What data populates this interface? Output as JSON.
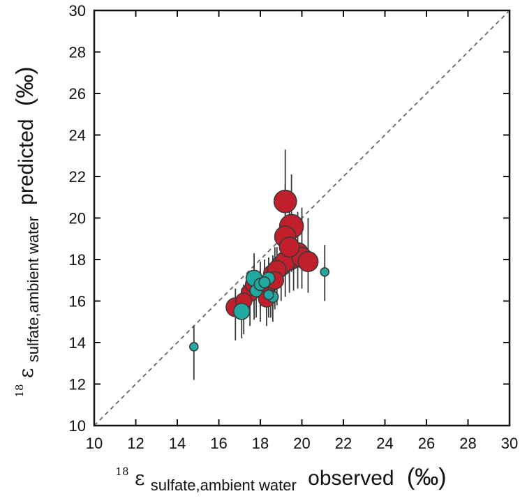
{
  "chart_data": {
    "type": "scatter",
    "xlim": [
      10,
      30
    ],
    "ylim": [
      10,
      30
    ],
    "xticks": [
      10,
      12,
      14,
      16,
      18,
      20,
      22,
      24,
      26,
      28,
      30
    ],
    "yticks": [
      10,
      12,
      14,
      16,
      18,
      20,
      22,
      24,
      26,
      28,
      30
    ],
    "xlabel": {
      "sup": "18",
      "symbol": "ε",
      "sub": "sulfate,ambient water",
      "main": "observed",
      "unit": "(‰)"
    },
    "ylabel": {
      "sup": "18",
      "symbol": "ε",
      "sub": "sulfate,ambient water",
      "main": "predicted",
      "unit": "(‰)"
    },
    "reference_line": {
      "from": [
        10,
        10
      ],
      "to": [
        30,
        30
      ],
      "style": "dashed"
    },
    "grid": false,
    "legend": "none",
    "colors": {
      "series_1": "#c11f2c",
      "series_2": "#1fa9a1",
      "marker_edge": "#3a3a3a",
      "error_bar": "#3a3a3a",
      "reference_line": "#666666"
    },
    "series": [
      {
        "points": [
          {
            "x": 16.8,
            "y": 15.7,
            "err": [
              14.1,
              16.6
            ],
            "size": 0.8
          },
          {
            "x": 17.2,
            "y": 16.0,
            "err": [
              14.4,
              16.8
            ],
            "size": 0.7
          },
          {
            "x": 17.5,
            "y": 16.4,
            "err": [
              14.8,
              17.4
            ],
            "size": 0.75
          },
          {
            "x": 17.7,
            "y": 16.8,
            "err": [
              15.1,
              17.8
            ],
            "size": 0.75
          },
          {
            "x": 18.0,
            "y": 16.6,
            "err": [
              15.0,
              17.5
            ],
            "size": 0.7
          },
          {
            "x": 18.3,
            "y": 16.1,
            "err": [
              14.8,
              17.2
            ],
            "size": 0.7
          },
          {
            "x": 18.5,
            "y": 16.9,
            "err": [
              15.2,
              17.7
            ],
            "size": 0.75
          },
          {
            "x": 18.6,
            "y": 17.3,
            "err": [
              15.6,
              18.2
            ],
            "size": 0.8
          },
          {
            "x": 18.8,
            "y": 17.5,
            "err": [
              15.8,
              18.6
            ],
            "size": 0.8
          },
          {
            "x": 19.0,
            "y": 17.7,
            "err": [
              16.0,
              18.8
            ],
            "size": 0.85
          },
          {
            "x": 19.2,
            "y": 17.9,
            "err": [
              16.2,
              19.2
            ],
            "size": 0.85
          },
          {
            "x": 19.4,
            "y": 18.0,
            "err": [
              16.4,
              19.5
            ],
            "size": 0.9
          },
          {
            "x": 19.6,
            "y": 18.1,
            "err": [
              16.5,
              20.0
            ],
            "size": 0.9
          },
          {
            "x": 19.8,
            "y": 18.3,
            "err": [
              16.6,
              20.3
            ],
            "size": 0.9
          },
          {
            "x": 20.0,
            "y": 18.1,
            "err": [
              16.6,
              20.5
            ],
            "size": 0.85
          },
          {
            "x": 20.3,
            "y": 17.9,
            "err": [
              16.4,
              20.0
            ],
            "size": 0.85
          },
          {
            "x": 19.2,
            "y": 19.1,
            "err": [
              17.2,
              21.6
            ],
            "size": 0.9
          },
          {
            "x": 19.4,
            "y": 18.6,
            "err": [
              16.9,
              20.8
            ],
            "size": 0.85
          },
          {
            "x": 19.5,
            "y": 19.6,
            "err": [
              17.4,
              22.1
            ],
            "size": 1.0
          },
          {
            "x": 19.2,
            "y": 20.8,
            "err": [
              18.3,
              23.3
            ],
            "size": 0.95
          },
          {
            "x": 18.7,
            "y": 17.0,
            "err": [
              15.6,
              18.6
            ],
            "size": 0.75
          }
        ]
      },
      {
        "points": [
          {
            "x": 14.8,
            "y": 13.8,
            "err": [
              12.2,
              14.8
            ],
            "size": 0.4
          },
          {
            "x": 17.1,
            "y": 15.5,
            "err": [
              14.2,
              16.6
            ],
            "size": 0.7
          },
          {
            "x": 17.7,
            "y": 17.1,
            "err": [
              15.5,
              18.3
            ],
            "size": 0.7
          },
          {
            "x": 17.8,
            "y": 16.5,
            "err": [
              15.2,
              17.4
            ],
            "size": 0.55
          },
          {
            "x": 18.0,
            "y": 16.8,
            "err": [
              15.6,
              17.9
            ],
            "size": 0.55
          },
          {
            "x": 18.2,
            "y": 16.9,
            "err": [
              15.7,
              18.0
            ],
            "size": 0.5
          },
          {
            "x": 18.4,
            "y": 16.3,
            "err": [
              15.2,
              17.3
            ],
            "size": 0.45
          },
          {
            "x": 18.4,
            "y": 17.1,
            "err": [
              15.9,
              18.1
            ],
            "size": 0.55
          },
          {
            "x": 18.6,
            "y": 16.2,
            "err": [
              15.0,
              17.1
            ],
            "size": 0.5
          },
          {
            "x": 21.1,
            "y": 17.4,
            "err": [
              16.0,
              18.7
            ],
            "size": 0.4
          }
        ]
      }
    ]
  }
}
